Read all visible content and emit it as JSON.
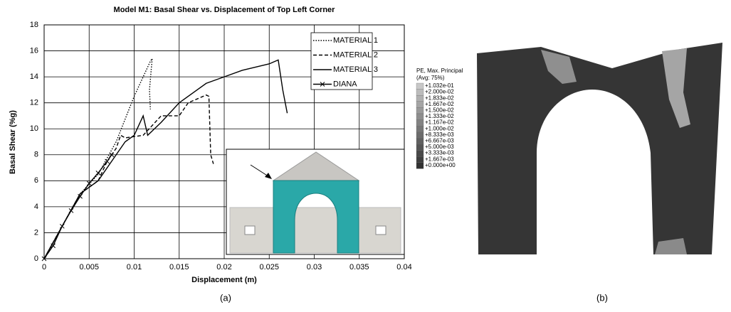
{
  "chart_data": {
    "type": "line",
    "title": "Model M1: Basal Shear vs. Displacement of Top Left Corner",
    "x_label": "Displacement (m)",
    "y_label": "Basal Shear (%g)",
    "xlim": [
      0,
      0.04
    ],
    "xticks": [
      0,
      0.005,
      0.01,
      0.015,
      0.02,
      0.025,
      0.03,
      0.035,
      0.04
    ],
    "ylim": [
      0,
      18
    ],
    "yticks": [
      0,
      2,
      4,
      6,
      8,
      10,
      12,
      14,
      16,
      18
    ],
    "grid": true,
    "legend": "top-right",
    "series": [
      {
        "name": "MATERIAL 1",
        "color": "#000000",
        "dash": "dotted",
        "x": [
          0,
          0.004,
          0.006,
          0.008,
          0.01,
          0.0118,
          0.012,
          0.0117,
          0.0118
        ],
        "values": [
          0,
          5,
          6.5,
          9,
          12.5,
          15.2,
          15.4,
          13,
          11.5
        ]
      },
      {
        "name": "MATERIAL 2",
        "color": "#000000",
        "dash": "dashed",
        "x": [
          0,
          0.004,
          0.006,
          0.007,
          0.008,
          0.0085,
          0.009,
          0.011,
          0.013,
          0.015,
          0.016,
          0.017,
          0.018,
          0.0183,
          0.0185,
          0.0188
        ],
        "values": [
          0,
          5,
          6,
          7.5,
          8.5,
          9.5,
          9.3,
          9.5,
          11,
          11,
          12,
          12.3,
          12.6,
          12.5,
          8,
          7.3
        ]
      },
      {
        "name": "MATERIAL 3",
        "color": "#000000",
        "dash": "solid",
        "x": [
          0,
          0.004,
          0.006,
          0.008,
          0.009,
          0.01,
          0.011,
          0.0115,
          0.013,
          0.015,
          0.018,
          0.02,
          0.022,
          0.025,
          0.026,
          0.0265,
          0.027
        ],
        "values": [
          0,
          5,
          6,
          8,
          9,
          9.5,
          11,
          9.5,
          10.5,
          12,
          13.5,
          14,
          14.5,
          15,
          15.3,
          13,
          11.2
        ]
      },
      {
        "name": "DIANA",
        "color": "#000000",
        "dash": "solid",
        "marker": "x",
        "x": [
          0,
          0.001,
          0.002,
          0.003,
          0.004,
          0.005,
          0.006,
          0.007,
          0.0075
        ],
        "values": [
          0,
          1,
          2.5,
          3.7,
          4.8,
          5.8,
          6.6,
          7.5,
          8
        ]
      }
    ]
  },
  "captions": [
    "(a)",
    "(b)"
  ],
  "contour": {
    "title": "PE, Max. Principal",
    "subtitle": "(Avg: 75%)",
    "levels": [
      "+1.032e-01",
      "+2.000e-02",
      "+1.833e-02",
      "+1.667e-02",
      "+1.500e-02",
      "+1.333e-02",
      "+1.167e-02",
      "+1.000e-02",
      "+8.333e-03",
      "+6.667e-03",
      "+5.000e-03",
      "+3.333e-03",
      "+1.667e-03",
      "+0.000e+00"
    ]
  }
}
